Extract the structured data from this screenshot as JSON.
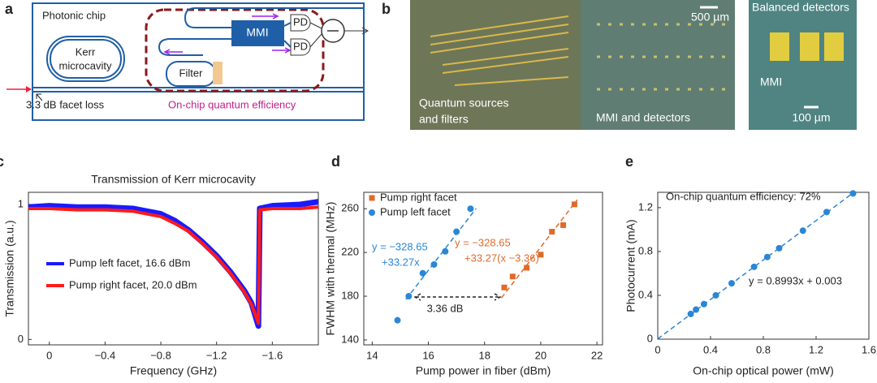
{
  "diagram": {
    "label": "a",
    "chip_label": "Photonic chip",
    "kerr_label": [
      "Kerr",
      "microcavity"
    ],
    "mmi_label": "MMI",
    "pd_labels": [
      "PD",
      "PD"
    ],
    "filter_label": "Filter",
    "facet_loss": "3.3 dB facet loss",
    "efficiency_label": "On-chip quantum efficiency"
  },
  "photos": {
    "label": "b",
    "scale_bars": [
      "500 µm",
      "100 µm"
    ],
    "sources_caption": [
      "Quantum sources",
      "and filters"
    ],
    "detectors_caption": "MMI and detectors",
    "balanced_caption": "Balanced detectors",
    "mmi_caption": "MMI"
  },
  "chart_data": [
    {
      "type": "line",
      "label": "c",
      "title": "Transmission of Kerr microcavity",
      "xlabel": "Frequency (GHz)",
      "ylabel": "Transmission (a.u.)",
      "x": [
        0.15,
        0,
        -0.2,
        -0.4,
        -0.6,
        -0.8,
        -0.9,
        -1.0,
        -1.1,
        -1.2,
        -1.3,
        -1.4,
        -1.45,
        -1.5,
        -1.51,
        -1.6,
        -1.8,
        -1.93
      ],
      "series": [
        {
          "name": "Pump left facet, 16.6 dBm",
          "color": "#1a1aff",
          "values": [
            0.98,
            0.99,
            0.98,
            0.98,
            0.97,
            0.93,
            0.88,
            0.81,
            0.72,
            0.62,
            0.5,
            0.36,
            0.27,
            0.1,
            0.97,
            0.99,
            1.0,
            1.02
          ]
        },
        {
          "name": "Pump right facet, 20.0 dBm",
          "color": "#ff1a1a",
          "values": [
            0.97,
            0.97,
            0.96,
            0.96,
            0.95,
            0.91,
            0.86,
            0.8,
            0.71,
            0.61,
            0.49,
            0.35,
            0.26,
            0.12,
            0.96,
            0.97,
            0.97,
            0.98
          ]
        }
      ],
      "xlim": [
        0.15,
        -1.93
      ],
      "ylim": [
        -0.04,
        1.09
      ],
      "xticks": [
        0,
        {
          "value": -0.4,
          "label": "−0.4"
        },
        {
          "value": -0.8,
          "label": "−0.8"
        },
        {
          "value": -1.2,
          "label": "−1.2"
        },
        {
          "value": -1.6,
          "label": "−1.6"
        }
      ],
      "yticks": [
        0,
        1
      ],
      "legend": "lower left"
    },
    {
      "type": "scatter",
      "label": "d",
      "xlabel": "Pump power in fiber (dBm)",
      "ylabel": "FWHM with thermal (MHz)",
      "series": [
        {
          "name": "Pump right facet",
          "color": "#e06a2b",
          "marker": "square",
          "x": [
            18.7,
            19.0,
            19.5,
            20.0,
            20.4,
            20.8,
            21.2
          ],
          "values": [
            188,
            198,
            206,
            218,
            239,
            245,
            264
          ]
        },
        {
          "name": "Pump left facet",
          "color": "#2a86d6",
          "marker": "circle",
          "x": [
            14.9,
            15.3,
            15.8,
            16.2,
            16.6,
            17.0,
            17.5
          ],
          "values": [
            158,
            180,
            201,
            209,
            221,
            239,
            260
          ]
        }
      ],
      "fits": [
        {
          "color": "#2a86d6",
          "x": [
            15.2,
            17.7
          ],
          "values": [
            177.05,
            260.23
          ]
        },
        {
          "color": "#e06a2b",
          "x": [
            18.6,
            21.3
          ],
          "values": [
            178.38,
            268.19
          ]
        }
      ],
      "annotations": [
        {
          "text": [
            "y = −328.65",
            "+33.27x"
          ],
          "color": "#2a86d6"
        },
        {
          "text": [
            "y = −328.65",
            "+33.27(x −3.36)"
          ],
          "color": "#e06a2b"
        },
        {
          "text": [
            "3.36 dB"
          ],
          "color": "#222222"
        }
      ],
      "xlim": [
        13.7,
        22.2
      ],
      "ylim": [
        135.5,
        275
      ],
      "xticks": [
        14,
        16,
        18,
        20,
        22
      ],
      "yticks": [
        140,
        180,
        220,
        260
      ],
      "legend": "upper left"
    },
    {
      "type": "scatter",
      "label": "e",
      "xlabel": "On-chip optical power (mW)",
      "ylabel": "Photocurrent (mA)",
      "series": [
        {
          "color": "#2a86d6",
          "marker": "circle",
          "x": [
            0.25,
            0.29,
            0.35,
            0.44,
            0.56,
            0.73,
            0.83,
            0.92,
            1.1,
            1.28,
            1.48
          ],
          "values": [
            0.23,
            0.27,
            0.32,
            0.4,
            0.51,
            0.66,
            0.75,
            0.83,
            0.99,
            1.16,
            1.33
          ]
        }
      ],
      "fits": [
        {
          "color": "#2a86d6",
          "x": [
            0,
            1.48
          ],
          "values": [
            0.003,
            1.334
          ]
        }
      ],
      "annotations": [
        {
          "text": [
            "On-chip quantum efficiency: 72%"
          ],
          "color": "#222222"
        },
        {
          "text": [
            "y = 0.8993x + 0.003"
          ],
          "color": "#222222"
        }
      ],
      "xlim": [
        0,
        1.6
      ],
      "ylim": [
        0,
        1.34
      ],
      "xticks": [
        0,
        0.4,
        0.8,
        1.2,
        1.6
      ],
      "yticks": [
        0,
        0.4,
        0.8,
        1.2
      ]
    }
  ]
}
